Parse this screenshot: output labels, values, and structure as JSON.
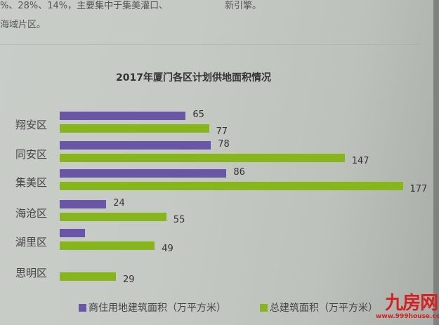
{
  "page_text": {
    "line1_left": "%、28%、14%，主要集中于集美灌口、",
    "line1_right": "新引擎。",
    "line2": "海域片区。"
  },
  "chart_data": {
    "type": "bar",
    "orientation": "horizontal",
    "title": "2017年厦门各区计划供地面积情况",
    "categories": [
      "翔安区",
      "同安区",
      "集美区",
      "海沧区",
      "湖里区",
      "思明区"
    ],
    "series": [
      {
        "name": "商住用地建筑面积（万平方米）",
        "color": "#6a56a6",
        "values": [
          65,
          78,
          86,
          24,
          13,
          0
        ],
        "labels": [
          "65",
          "78",
          "86",
          "24",
          "",
          ""
        ]
      },
      {
        "name": "总建筑面积（万平方米）",
        "color": "#86b51c",
        "values": [
          77,
          147,
          177,
          55,
          49,
          29
        ],
        "labels": [
          "77",
          "147",
          "177",
          "55",
          "49",
          "29"
        ]
      }
    ],
    "xlabel": "",
    "ylabel": "",
    "grid": false,
    "legend_position": "bottom"
  },
  "watermark": {
    "logo": "九房网",
    "url": "www.999house.com"
  }
}
